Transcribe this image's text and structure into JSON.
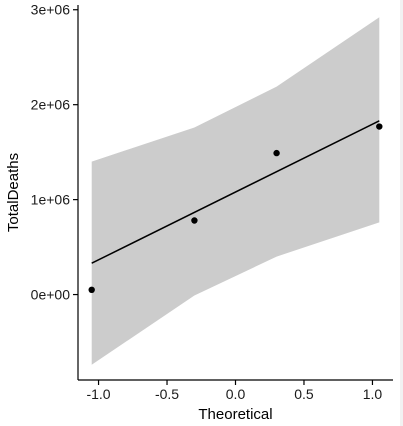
{
  "chart_data": {
    "type": "scatter",
    "xlabel": "Theoretical",
    "ylabel": "TotalDeaths",
    "xlim": [
      -1.15,
      1.15
    ],
    "ylim": [
      -900000,
      3050000
    ],
    "x_ticks": [
      -1.0,
      -0.5,
      0.0,
      0.5,
      1.0
    ],
    "x_tick_labels": [
      "-1.0",
      "-0.5",
      "0.0",
      "0.5",
      "1.0"
    ],
    "y_ticks": [
      0,
      1000000,
      2000000,
      3000000
    ],
    "y_tick_labels": [
      "0e+00",
      "1e+06",
      "2e+06",
      "3e+06"
    ],
    "grid": false,
    "points": [
      {
        "x": -1.05,
        "y": 50000
      },
      {
        "x": -0.3,
        "y": 780000
      },
      {
        "x": 0.3,
        "y": 1490000
      },
      {
        "x": 1.05,
        "y": 1770000
      }
    ],
    "reference_line": {
      "x": [
        -1.05,
        1.05
      ],
      "y": [
        330000,
        1830000
      ]
    },
    "confidence_band": {
      "x": [
        -1.05,
        -0.3,
        0.3,
        1.05
      ],
      "lower": [
        -740000,
        -10000,
        400000,
        760000
      ],
      "upper": [
        1400000,
        1760000,
        2190000,
        2920000
      ]
    },
    "colors": {
      "band": "#cccccc",
      "line": "#000000",
      "points": "#000000",
      "axis": "#000000"
    }
  }
}
